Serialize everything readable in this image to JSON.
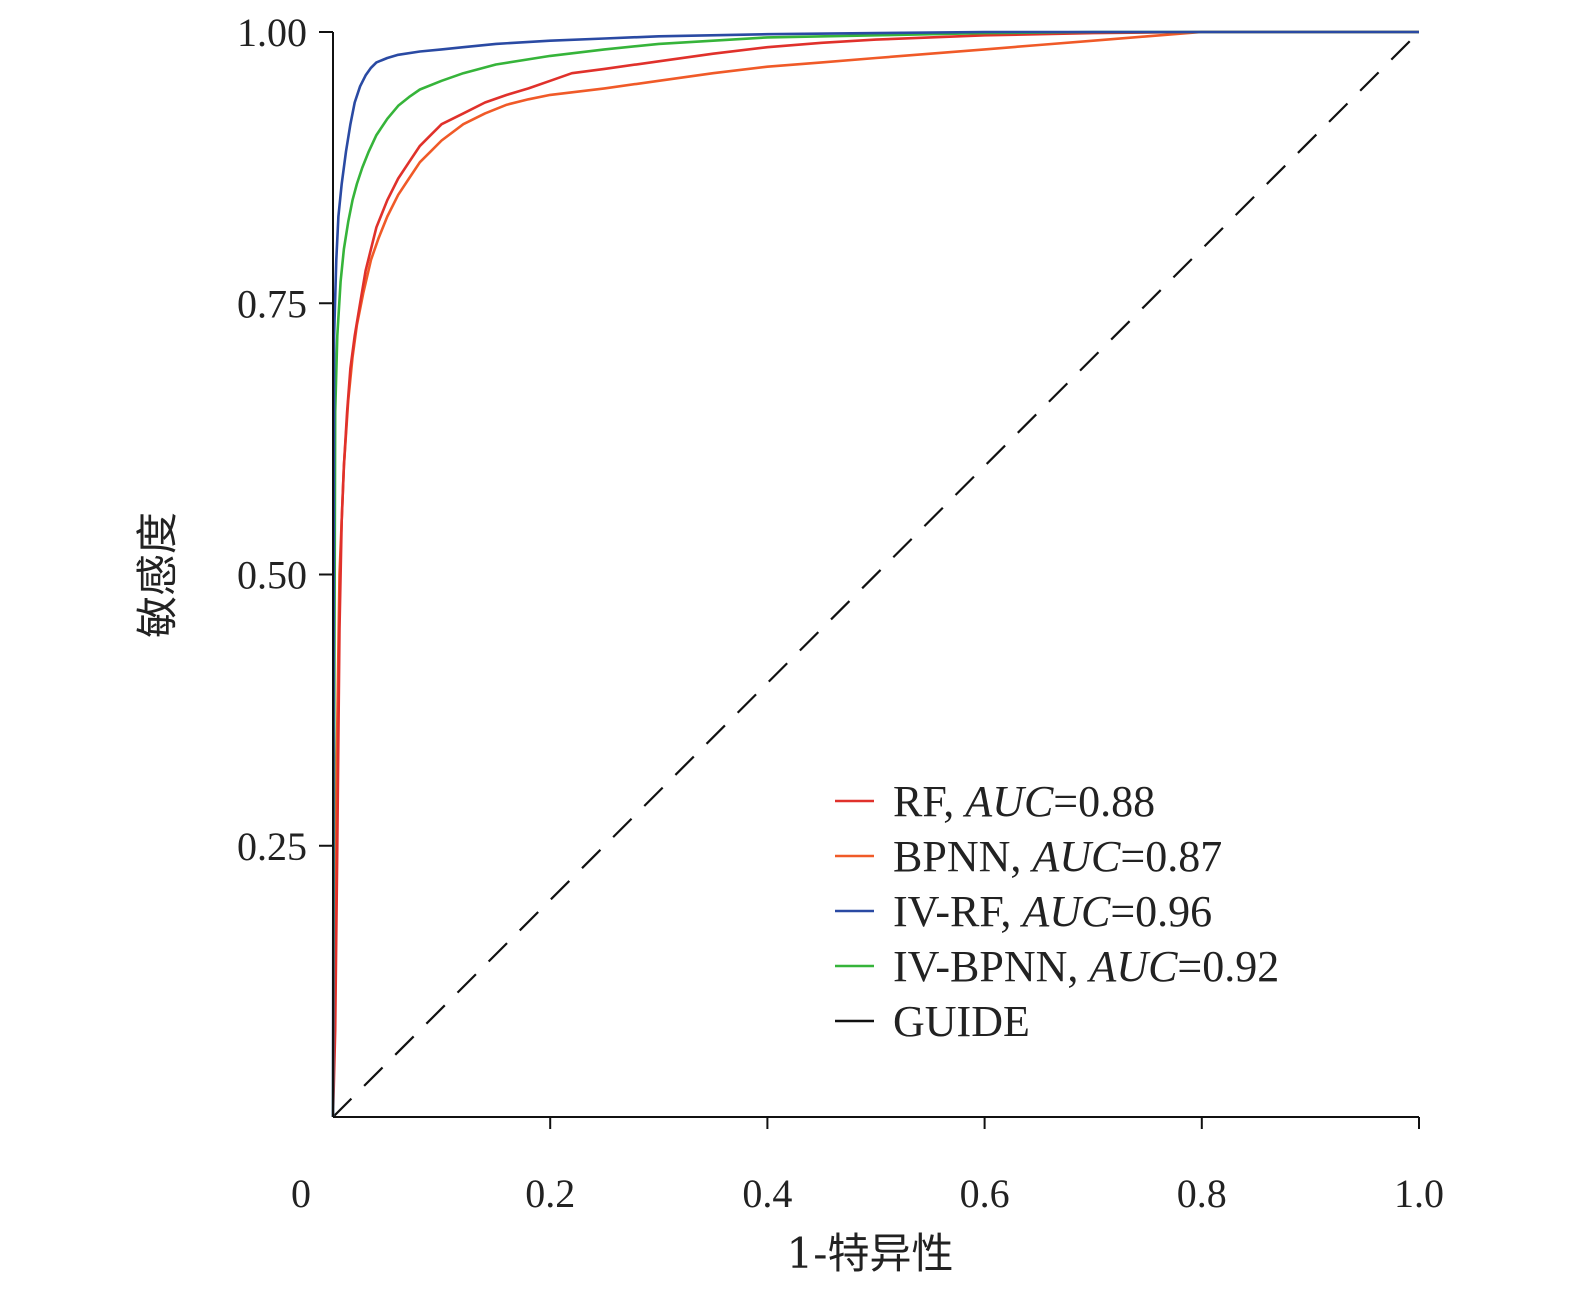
{
  "chart_data": {
    "type": "line",
    "xlabel": "1-特异性",
    "ylabel": "敏感度",
    "xlim": [
      0,
      1.0
    ],
    "ylim": [
      0,
      1.0
    ],
    "x_ticks": [
      {
        "value": 0,
        "label": "0"
      },
      {
        "value": 0.2,
        "label": "0.2"
      },
      {
        "value": 0.4,
        "label": "0.4"
      },
      {
        "value": 0.6,
        "label": "0.6"
      },
      {
        "value": 0.8,
        "label": "0.8"
      },
      {
        "value": 1.0,
        "label": "1.0"
      }
    ],
    "y_ticks": [
      {
        "value": 0.25,
        "label": "0.25"
      },
      {
        "value": 0.5,
        "label": "0.50"
      },
      {
        "value": 0.75,
        "label": "0.75"
      },
      {
        "value": 1.0,
        "label": "1.00"
      }
    ],
    "grid": false,
    "legend_position": "bottom-right",
    "series": [
      {
        "name": "RF",
        "auc_label": "AUC",
        "auc_value": "=0.88",
        "color": "#e0312b",
        "dash": "solid",
        "x": [
          0,
          0.002,
          0.004,
          0.006,
          0.008,
          0.01,
          0.013,
          0.016,
          0.02,
          0.025,
          0.03,
          0.035,
          0.04,
          0.05,
          0.06,
          0.07,
          0.08,
          0.09,
          0.1,
          0.12,
          0.14,
          0.16,
          0.18,
          0.2,
          0.22,
          0.25,
          0.3,
          0.35,
          0.4,
          0.45,
          0.5,
          0.55,
          0.6,
          0.7,
          0.8,
          0.9,
          1.0
        ],
        "y": [
          0,
          0.08,
          0.25,
          0.45,
          0.55,
          0.6,
          0.65,
          0.69,
          0.72,
          0.75,
          0.78,
          0.8,
          0.82,
          0.845,
          0.865,
          0.88,
          0.895,
          0.905,
          0.915,
          0.925,
          0.935,
          0.942,
          0.948,
          0.955,
          0.962,
          0.966,
          0.973,
          0.98,
          0.986,
          0.99,
          0.993,
          0.995,
          0.997,
          0.999,
          1.0,
          1.0,
          1.0
        ]
      },
      {
        "name": "BPNN",
        "auc_label": "AUC",
        "auc_value": "=0.87",
        "color": "#f05a28",
        "dash": "solid",
        "x": [
          0,
          0.003,
          0.006,
          0.01,
          0.014,
          0.018,
          0.022,
          0.028,
          0.035,
          0.042,
          0.05,
          0.06,
          0.07,
          0.08,
          0.09,
          0.1,
          0.12,
          0.14,
          0.16,
          0.18,
          0.2,
          0.25,
          0.3,
          0.35,
          0.4,
          0.45,
          0.5,
          0.55,
          0.6,
          0.65,
          0.7,
          0.75,
          0.8,
          0.9,
          1.0
        ],
        "y": [
          0,
          0.3,
          0.5,
          0.6,
          0.66,
          0.7,
          0.73,
          0.76,
          0.79,
          0.81,
          0.83,
          0.85,
          0.865,
          0.88,
          0.89,
          0.9,
          0.915,
          0.925,
          0.933,
          0.938,
          0.942,
          0.948,
          0.955,
          0.962,
          0.968,
          0.972,
          0.976,
          0.98,
          0.984,
          0.988,
          0.992,
          0.996,
          1.0,
          1.0,
          1.0
        ]
      },
      {
        "name": "IV-RF",
        "auc_label": "AUC",
        "auc_value": "=0.96",
        "color": "#2a4aa3",
        "dash": "solid",
        "x": [
          0,
          0.001,
          0.003,
          0.005,
          0.008,
          0.012,
          0.016,
          0.02,
          0.025,
          0.03,
          0.035,
          0.04,
          0.05,
          0.06,
          0.08,
          0.1,
          0.12,
          0.15,
          0.2,
          0.25,
          0.3,
          0.4,
          0.5,
          0.6,
          0.7,
          0.8,
          0.9,
          1.0
        ],
        "y": [
          0,
          0.72,
          0.79,
          0.83,
          0.86,
          0.89,
          0.915,
          0.935,
          0.95,
          0.96,
          0.967,
          0.972,
          0.976,
          0.979,
          0.982,
          0.984,
          0.986,
          0.989,
          0.992,
          0.994,
          0.996,
          0.998,
          0.999,
          1.0,
          1.0,
          1.0,
          1.0,
          1.0
        ]
      },
      {
        "name": "IV-BPNN",
        "auc_label": "AUC",
        "auc_value": "=0.92",
        "color": "#36b43a",
        "dash": "solid",
        "x": [
          0,
          0.002,
          0.004,
          0.007,
          0.01,
          0.014,
          0.018,
          0.022,
          0.027,
          0.033,
          0.04,
          0.05,
          0.06,
          0.07,
          0.08,
          0.1,
          0.12,
          0.15,
          0.2,
          0.25,
          0.3,
          0.35,
          0.4,
          0.5,
          0.6,
          0.7,
          0.8,
          0.9,
          1.0
        ],
        "y": [
          0,
          0.65,
          0.72,
          0.77,
          0.8,
          0.825,
          0.845,
          0.86,
          0.875,
          0.89,
          0.905,
          0.92,
          0.932,
          0.94,
          0.947,
          0.955,
          0.962,
          0.97,
          0.978,
          0.984,
          0.989,
          0.992,
          0.995,
          0.997,
          0.999,
          1.0,
          1.0,
          1.0,
          1.0
        ]
      },
      {
        "name": "GUIDE",
        "auc_label": "",
        "auc_value": "",
        "color": "#111111",
        "dash": "dashed",
        "x": [
          0,
          1.0
        ],
        "y": [
          0,
          1.0
        ]
      }
    ]
  }
}
